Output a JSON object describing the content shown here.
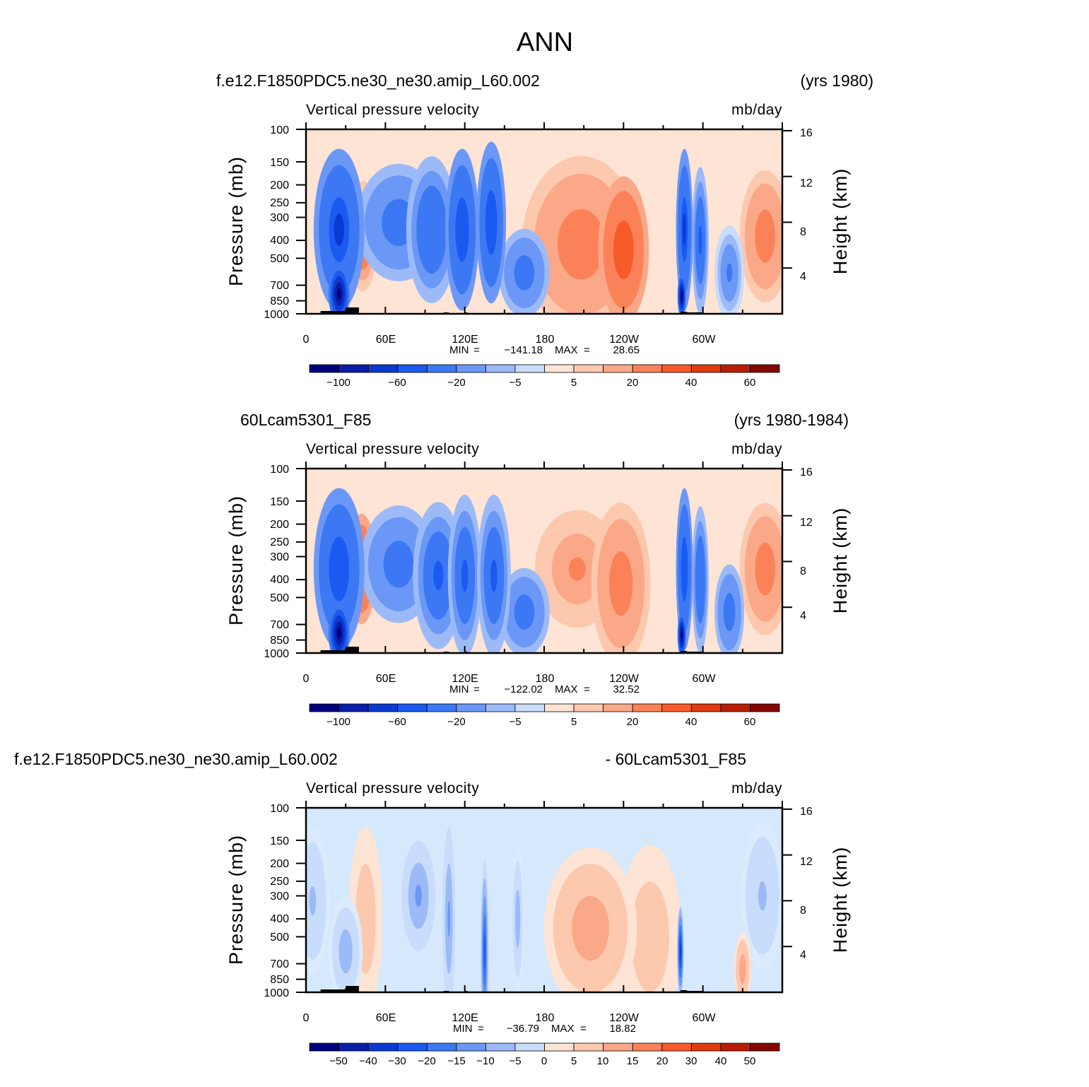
{
  "figure": {
    "title": "ANN"
  },
  "chart_data": [
    {
      "type": "heatmap",
      "case_name": "f.e12.F1850PDC5.ne30_ne30.amip_L60.002",
      "years": "(yrs 1980)",
      "title": "Vertical pressure velocity",
      "units": "mb/day",
      "ylabel": "Pressure (mb)",
      "y2label": "Height (km)",
      "x_ticks": [
        "0",
        "60E",
        "120E",
        "180",
        "120W",
        "60W"
      ],
      "y_ticks": [
        "100",
        "150",
        "200",
        "250",
        "300",
        "400",
        "500",
        "700",
        "850",
        "1000"
      ],
      "height_ticks": [
        "16",
        "12",
        "8",
        "4"
      ],
      "stats": {
        "min_label": "MIN",
        "min": "−141.18",
        "max_label": "MAX",
        "max": "28.65"
      },
      "colorbar_labels": [
        "−100",
        "−60",
        "−20",
        "−5",
        "5",
        "20",
        "40",
        "60"
      ],
      "features": [
        {
          "lon": 25,
          "p": 350,
          "value": -60,
          "w": 12,
          "h": 2.2
        },
        {
          "lon": 25,
          "p": 780,
          "value": -100,
          "w": 5,
          "h": 0.8
        },
        {
          "lon": 43,
          "p": 380,
          "value": 22,
          "w": 7,
          "h": 1.5
        },
        {
          "lon": 70,
          "p": 320,
          "value": -30,
          "w": 20,
          "h": 1.6
        },
        {
          "lon": 95,
          "p": 350,
          "value": -35,
          "w": 12,
          "h": 2.0
        },
        {
          "lon": 118,
          "p": 350,
          "value": -55,
          "w": 8,
          "h": 2.2
        },
        {
          "lon": 140,
          "p": 320,
          "value": -55,
          "w": 7,
          "h": 2.2
        },
        {
          "lon": 165,
          "p": 600,
          "value": -25,
          "w": 12,
          "h": 1.2
        },
        {
          "lon": 208,
          "p": 420,
          "value": 15,
          "w": 28,
          "h": 2.4
        },
        {
          "lon": 240,
          "p": 450,
          "value": 25,
          "w": 12,
          "h": 2.0
        },
        {
          "lon": 286,
          "p": 350,
          "value": -60,
          "w": 4,
          "h": 2.2
        },
        {
          "lon": 284,
          "p": 800,
          "value": -120,
          "w": 2,
          "h": 0.6
        },
        {
          "lon": 298,
          "p": 400,
          "value": -40,
          "w": 4,
          "h": 2.0
        },
        {
          "lon": 320,
          "p": 600,
          "value": -20,
          "w": 7,
          "h": 1.3
        },
        {
          "lon": 347,
          "p": 380,
          "value": 15,
          "w": 12,
          "h": 1.8
        }
      ]
    },
    {
      "type": "heatmap",
      "case_name": "60Lcam5301_F85",
      "years": "(yrs 1980-1984)",
      "title": "Vertical pressure velocity",
      "units": "mb/day",
      "ylabel": "Pressure (mb)",
      "y2label": "Height (km)",
      "x_ticks": [
        "0",
        "60E",
        "120E",
        "180",
        "120W",
        "60W"
      ],
      "y_ticks": [
        "100",
        "150",
        "200",
        "250",
        "300",
        "400",
        "500",
        "700",
        "850",
        "1000"
      ],
      "height_ticks": [
        "16",
        "12",
        "8",
        "4"
      ],
      "stats": {
        "min_label": "MIN",
        "min": "−122.02",
        "max_label": "MAX",
        "max": "32.52"
      },
      "colorbar_labels": [
        "−100",
        "−60",
        "−20",
        "−5",
        "5",
        "20",
        "40",
        "60"
      ],
      "features": [
        {
          "lon": 25,
          "p": 350,
          "value": -55,
          "w": 12,
          "h": 2.2
        },
        {
          "lon": 25,
          "p": 780,
          "value": -100,
          "w": 5,
          "h": 0.8
        },
        {
          "lon": 42,
          "p": 350,
          "value": 25,
          "w": 7,
          "h": 1.5
        },
        {
          "lon": 70,
          "p": 330,
          "value": -30,
          "w": 18,
          "h": 1.6
        },
        {
          "lon": 100,
          "p": 380,
          "value": -40,
          "w": 12,
          "h": 2.0
        },
        {
          "lon": 120,
          "p": 380,
          "value": -40,
          "w": 8,
          "h": 2.2
        },
        {
          "lon": 142,
          "p": 380,
          "value": -40,
          "w": 8,
          "h": 2.2
        },
        {
          "lon": 165,
          "p": 600,
          "value": -25,
          "w": 12,
          "h": 1.2
        },
        {
          "lon": 205,
          "p": 350,
          "value": 10,
          "w": 20,
          "h": 1.6
        },
        {
          "lon": 238,
          "p": 420,
          "value": 15,
          "w": 14,
          "h": 2.2
        },
        {
          "lon": 286,
          "p": 350,
          "value": -55,
          "w": 4,
          "h": 2.2
        },
        {
          "lon": 284,
          "p": 800,
          "value": -110,
          "w": 2,
          "h": 0.6
        },
        {
          "lon": 298,
          "p": 400,
          "value": -35,
          "w": 4,
          "h": 2.0
        },
        {
          "lon": 320,
          "p": 600,
          "value": -25,
          "w": 7,
          "h": 1.3
        },
        {
          "lon": 347,
          "p": 350,
          "value": 15,
          "w": 12,
          "h": 1.8
        }
      ]
    },
    {
      "type": "heatmap",
      "case_name": "f.e12.F1850PDC5.ne30_ne30.amip_L60.002",
      "years": "- 60Lcam5301_F85",
      "title": "Vertical pressure velocity",
      "units": "mb/day",
      "ylabel": "Pressure (mb)",
      "y2label": "Height (km)",
      "x_ticks": [
        "0",
        "60E",
        "120E",
        "180",
        "120W",
        "60W"
      ],
      "y_ticks": [
        "100",
        "150",
        "200",
        "250",
        "300",
        "400",
        "500",
        "700",
        "850",
        "1000"
      ],
      "height_ticks": [
        "16",
        "12",
        "8",
        "4"
      ],
      "stats": {
        "min_label": "MIN",
        "min": "−36.79",
        "max_label": "MAX",
        "max": "18.82"
      },
      "colorbar_labels": [
        "−50",
        "−40",
        "−30",
        "−20",
        "−15",
        "−10",
        "−5",
        "0",
        "5",
        "10",
        "15",
        "20",
        "30",
        "40",
        "50"
      ],
      "features": [
        {
          "lon": 5,
          "p": 320,
          "value": -6,
          "w": 8,
          "h": 2.0
        },
        {
          "lon": 30,
          "p": 600,
          "value": -8,
          "w": 8,
          "h": 1.5
        },
        {
          "lon": 45,
          "p": 400,
          "value": 4,
          "w": 8,
          "h": 2.5
        },
        {
          "lon": 85,
          "p": 300,
          "value": -12,
          "w": 8,
          "h": 1.5
        },
        {
          "lon": 108,
          "p": 400,
          "value": -12,
          "w": 3,
          "h": 2.5
        },
        {
          "lon": 135,
          "p": 600,
          "value": -20,
          "w": 2,
          "h": 2.5
        },
        {
          "lon": 160,
          "p": 400,
          "value": -8,
          "w": 3,
          "h": 2.0
        },
        {
          "lon": 215,
          "p": 450,
          "value": 8,
          "w": 22,
          "h": 2.2
        },
        {
          "lon": 283,
          "p": 600,
          "value": -30,
          "w": 1.5,
          "h": 1.2
        },
        {
          "lon": 260,
          "p": 500,
          "value": 4,
          "w": 15,
          "h": 2.5
        },
        {
          "lon": 330,
          "p": 750,
          "value": 8,
          "w": 4,
          "h": 1.0
        },
        {
          "lon": 345,
          "p": 300,
          "value": -5,
          "w": 10,
          "h": 2.0
        }
      ]
    }
  ]
}
